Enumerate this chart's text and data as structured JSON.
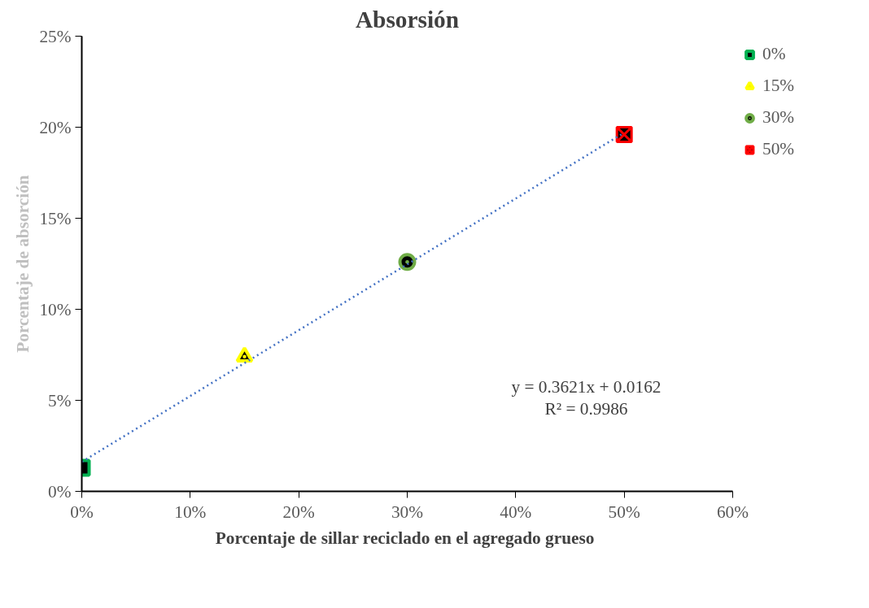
{
  "chart_data": {
    "type": "scatter",
    "title": "Absorsión",
    "xlabel": "Porcentaje de sillar  reciclado en el agregado grueso",
    "ylabel": "Porcentaje de absorción",
    "series": [
      {
        "name": "0%",
        "color": "#00b050",
        "marker": "square",
        "x": [
          0.0
        ],
        "values": [
          0.013
        ]
      },
      {
        "name": "15%",
        "color": "#ffff00",
        "marker": "triangle",
        "x": [
          0.15
        ],
        "values": [
          0.074
        ]
      },
      {
        "name": "30%",
        "color": "#70ad47",
        "marker": "circle",
        "x": [
          0.3
        ],
        "values": [
          0.126
        ]
      },
      {
        "name": "50%",
        "color": "#ff0000",
        "marker": "cross",
        "x": [
          0.5
        ],
        "values": [
          0.196
        ]
      },
      {
        "type": "line",
        "color": "#4472c4",
        "line_style": "dotted",
        "marker": "none",
        "x": [
          0.0,
          0.5
        ],
        "values": [
          0.0162,
          0.197
        ]
      }
    ],
    "xlim": [
      0,
      0.6
    ],
    "ylim": [
      0,
      0.25
    ],
    "xticks": [
      {
        "value": 0,
        "label": "0%"
      },
      {
        "value": 0.1,
        "label": "10%"
      },
      {
        "value": 0.2,
        "label": "20%"
      },
      {
        "value": 0.3,
        "label": "30%"
      },
      {
        "value": 0.4,
        "label": "40%"
      },
      {
        "value": 0.5,
        "label": "50%"
      },
      {
        "value": 0.6,
        "label": "60%"
      }
    ],
    "yticks": [
      {
        "value": 0,
        "label": "0%"
      },
      {
        "value": 0.05,
        "label": "5%"
      },
      {
        "value": 0.1,
        "label": "10%"
      },
      {
        "value": 0.15,
        "label": "15%"
      },
      {
        "value": 0.2,
        "label": "20%"
      },
      {
        "value": 0.25,
        "label": "25%"
      }
    ],
    "annotations": [
      "y = 0.3621x + 0.0162",
      "R² = 0.9986"
    ],
    "legend": "top right",
    "grid": false
  }
}
